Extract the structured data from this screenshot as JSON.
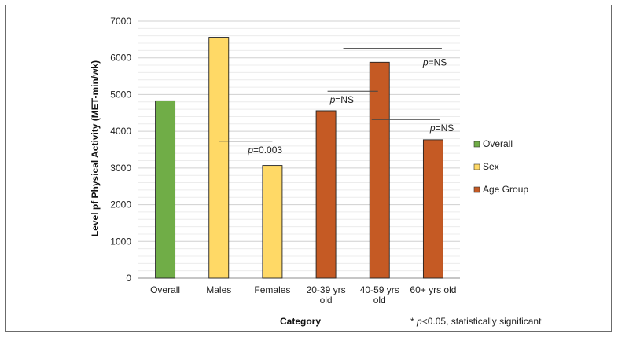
{
  "chart_data": {
    "type": "bar",
    "xlabel": "Category",
    "ylabel": "Level pf Physical Activity (MET-min/wk)",
    "ylim": [
      0,
      7000
    ],
    "yticks": [
      0,
      1000,
      2000,
      3000,
      4000,
      5000,
      6000,
      7000
    ],
    "grid": true,
    "legend_position": "right",
    "categories": [
      {
        "label": [
          "Overall"
        ],
        "value": 4830,
        "group": "Overall"
      },
      {
        "label": [
          "Males"
        ],
        "value": 6560,
        "group": "Sex"
      },
      {
        "label": [
          "Females"
        ],
        "value": 3070,
        "group": "Sex"
      },
      {
        "label": [
          "20-39 yrs",
          "old"
        ],
        "value": 4560,
        "group": "Age Group"
      },
      {
        "label": [
          "40-59 yrs",
          "old"
        ],
        "value": 5880,
        "group": "Age Group"
      },
      {
        "label": [
          "60+ yrs old"
        ],
        "value": 3770,
        "group": "Age Group"
      }
    ],
    "legend": [
      {
        "name": "Overall",
        "color": "#70ad47"
      },
      {
        "name": "Sex",
        "color": "#ffd966"
      },
      {
        "name": "Age Group",
        "color": "#c55a24"
      }
    ],
    "annotations": [
      {
        "prefix": "p",
        "text": "=0.003",
        "from": 1,
        "to": 2,
        "y": 3730
      },
      {
        "prefix": "p",
        "text": "=NS",
        "from": 3,
        "to": 4,
        "y": 5090
      },
      {
        "prefix": "p",
        "text": "=NS",
        "from": 4,
        "to": 5,
        "y": 4320
      },
      {
        "prefix": "p",
        "text": "=NS",
        "from": 3,
        "to": 5,
        "y": 6260
      }
    ],
    "footnote": "* p<0.05, statistically significant"
  }
}
